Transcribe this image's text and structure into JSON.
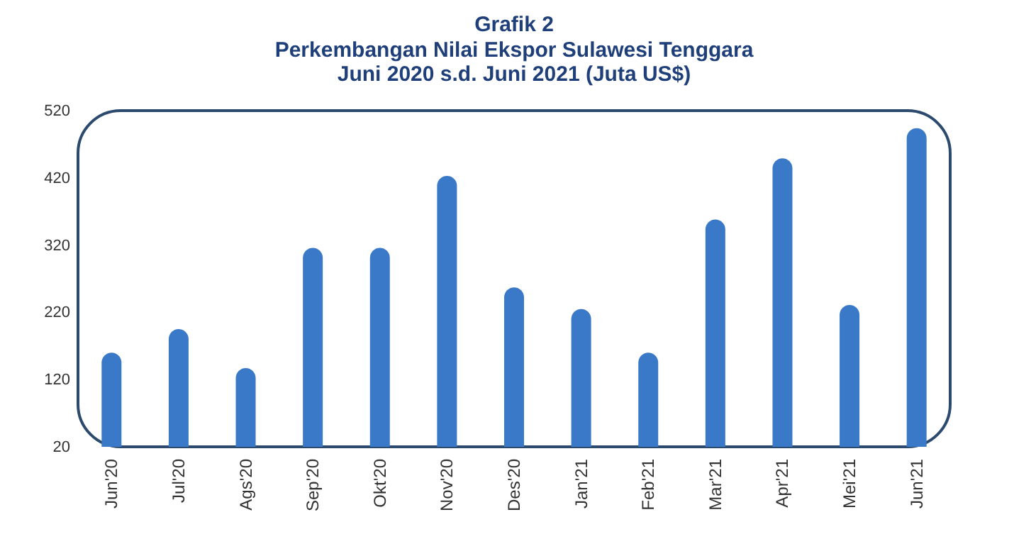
{
  "chart_data": {
    "type": "bar",
    "title": "Grafik 2",
    "subtitle": "Perkembangan Nilai Ekspor Sulawesi Tenggara\nJuni 2020 s.d. Juni 2021 (Juta US$)",
    "categories": [
      "Jun'20",
      "Jul'20",
      "Ags'20",
      "Sep'20",
      "Okt'20",
      "Nov'20",
      "Des'20",
      "Jan'21",
      "Feb'21",
      "Mar'21",
      "Apr'21",
      "Mei'21",
      "Jun'21"
    ],
    "values": [
      160,
      195,
      137,
      316,
      316,
      423,
      257,
      225,
      160,
      358,
      449,
      231,
      494
    ],
    "color": "#3a78c8",
    "ylim": [
      20,
      520
    ],
    "yticks": [
      20,
      120,
      220,
      320,
      420,
      520
    ],
    "grid": false
  }
}
